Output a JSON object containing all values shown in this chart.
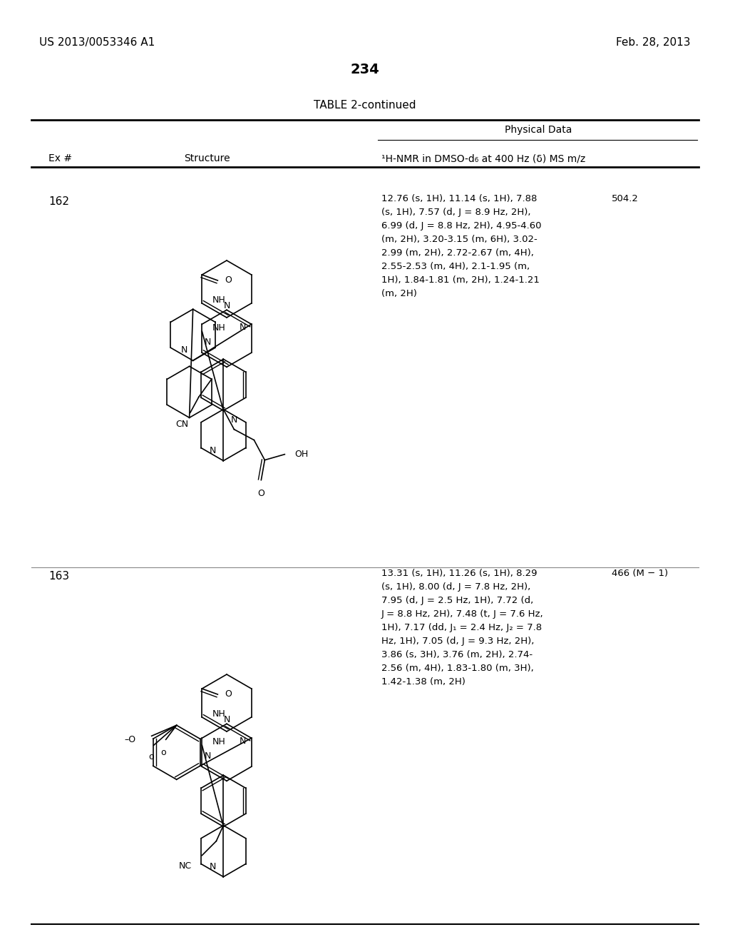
{
  "background_color": "#ffffff",
  "page_number": "234",
  "patent_left": "US 2013/0053346 A1",
  "patent_right": "Feb. 28, 2013",
  "table_title": "TABLE 2-continued",
  "physical_data_label": "Physical Data",
  "col_ex": "Ex #",
  "col_struct": "Structure",
  "col_nmr": "¹H-NMR in DMSO-d₆ at 400 Hz (δ) MS m/z",
  "row162_ex": "162",
  "row162_nmr": "12.76 (s, 1H), 11.14 (s, 1H), 7.88\n(s, 1H), 7.57 (d, J = 8.9 Hz, 2H),\n6.99 (d, J = 8.8 Hz, 2H), 4.95-4.60\n(m, 2H), 3.20-3.15 (m, 6H), 3.02-\n2.99 (m, 2H), 2.72-2.67 (m, 4H),\n2.55-2.53 (m, 4H), 2.1-1.95 (m,\n1H), 1.84-1.81 (m, 2H), 1.24-1.21\n(m, 2H)",
  "row162_ms": "504.2",
  "row163_ex": "163",
  "row163_nmr": "13.31 (s, 1H), 11.26 (s, 1H), 8.29\n(s, 1H), 8.00 (d, J = 7.8 Hz, 2H),\n7.95 (d, J = 2.5 Hz, 1H), 7.72 (d,\nJ = 8.8 Hz, 2H), 7.48 (t, J = 7.6 Hz,\n1H), 7.17 (dd, J₁ = 2.4 Hz, J₂ = 7.8\nHz, 1H), 7.05 (d, J = 9.3 Hz, 2H),\n3.86 (s, 3H), 3.76 (m, 2H), 2.74-\n2.56 (m, 4H), 1.83-1.80 (m, 3H),\n1.42-1.38 (m, 2H)",
  "row163_ms": "466 (M − 1)"
}
